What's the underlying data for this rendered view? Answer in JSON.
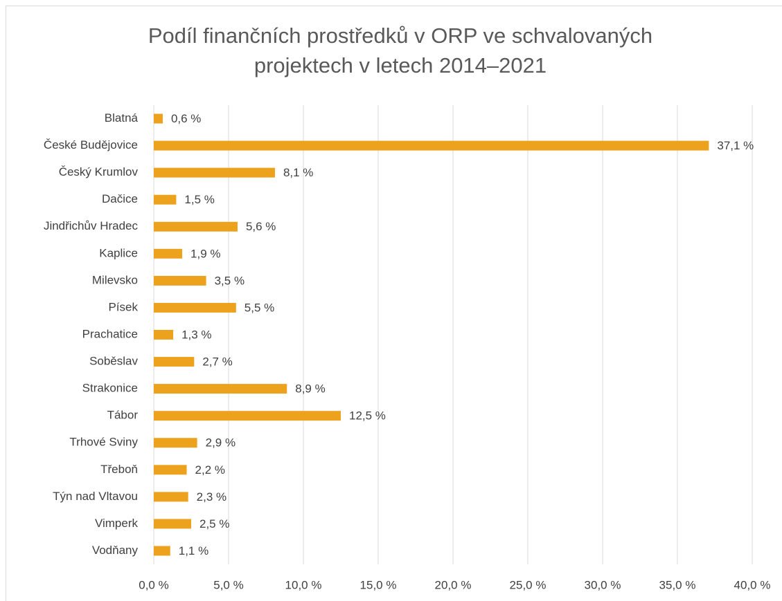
{
  "chart_data": {
    "type": "bar",
    "orientation": "horizontal",
    "title": "Podíl finančních prostředků v ORP ve schvalovaných projektech v letech 2014–2021",
    "categories": [
      "Blatná",
      "České Budějovice",
      "Český Krumlov",
      "Dačice",
      "Jindřichův Hradec",
      "Kaplice",
      "Milevsko",
      "Písek",
      "Prachatice",
      "Soběslav",
      "Strakonice",
      "Tábor",
      "Trhové Sviny",
      "Třeboň",
      "Týn nad Vltavou",
      "Vimperk",
      "Vodňany"
    ],
    "values": [
      0.6,
      37.1,
      8.1,
      1.5,
      5.6,
      1.9,
      3.5,
      5.5,
      1.3,
      2.7,
      8.9,
      12.5,
      2.9,
      2.2,
      2.3,
      2.5,
      1.1
    ],
    "value_labels": [
      "0,6 %",
      "37,1 %",
      "8,1 %",
      "1,5 %",
      "5,6 %",
      "1,9 %",
      "3,5 %",
      "5,5 %",
      "1,3 %",
      "2,7 %",
      "8,9 %",
      "12,5 %",
      "2,9 %",
      "2,2 %",
      "2,3 %",
      "2,5 %",
      "1,1 %"
    ],
    "color": "#eda21e",
    "xlim": [
      0,
      40
    ],
    "xticks": [
      {
        "value": 0,
        "label": "0,0 %"
      },
      {
        "value": 5,
        "label": "5,0 %"
      },
      {
        "value": 10,
        "label": "10,0 %"
      },
      {
        "value": 15,
        "label": "15,0 %"
      },
      {
        "value": 20,
        "label": "20,0 %"
      },
      {
        "value": 25,
        "label": "25,0 %"
      },
      {
        "value": 30,
        "label": "30,0 %"
      },
      {
        "value": 35,
        "label": "35,0 %"
      },
      {
        "value": 40,
        "label": "40,0 %"
      }
    ],
    "grid": true
  }
}
